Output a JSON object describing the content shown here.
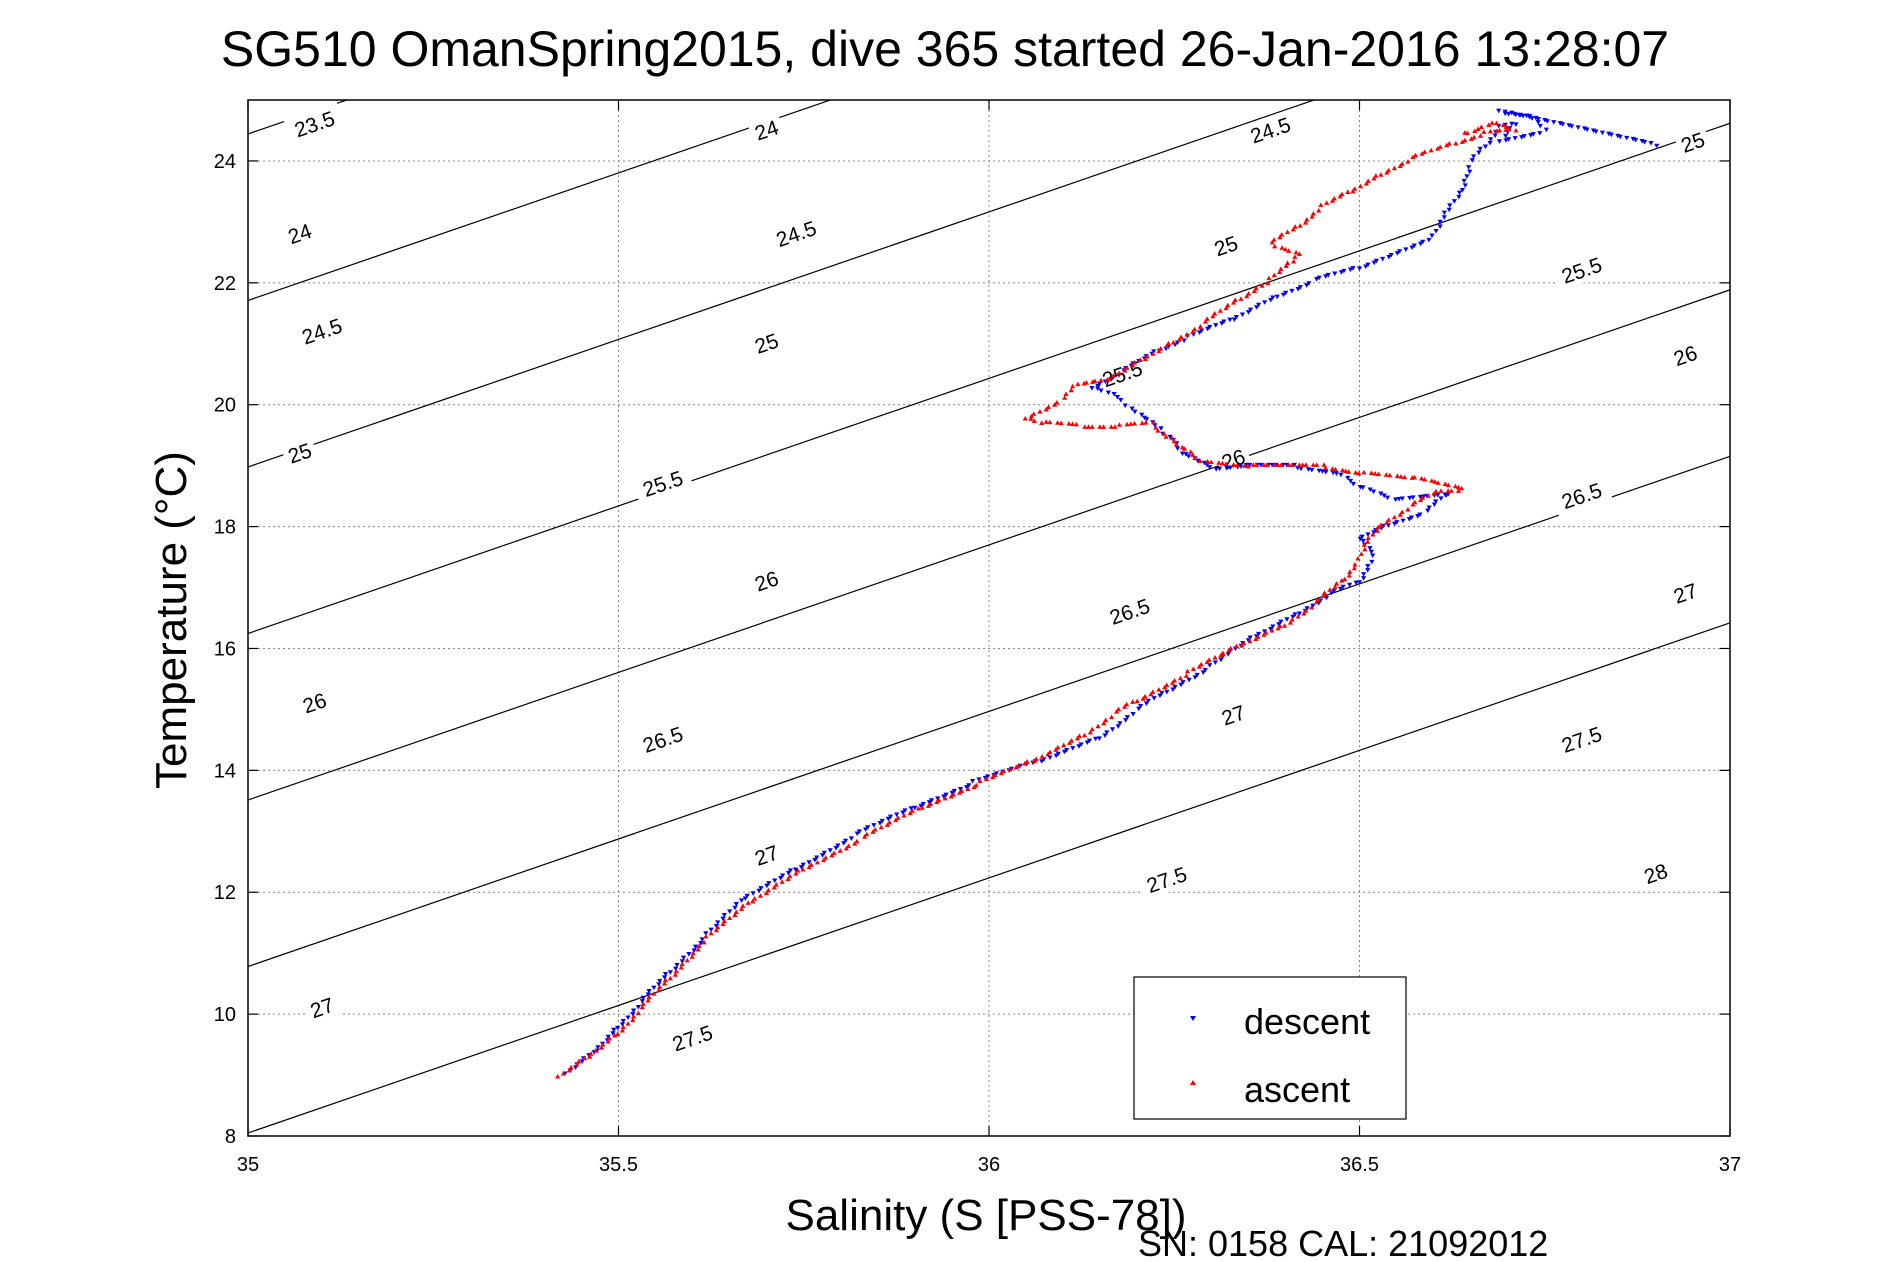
{
  "footer": "SN: 0158  CAL: 21092012",
  "chart_data": {
    "type": "scatter",
    "title": "SG510 OmanSpring2015, dive 365 started 26-Jan-2016 13:28:07",
    "xlabel": "Salinity (S [PSS-78])",
    "ylabel": "Temperature (°C)",
    "xlim": [
      35,
      37
    ],
    "ylim": [
      8,
      25
    ],
    "xticks": [
      "35",
      "35.5",
      "36",
      "36.5",
      "37"
    ],
    "yticks": [
      "8",
      "10",
      "12",
      "14",
      "16",
      "18",
      "20",
      "22",
      "24"
    ],
    "grid": true,
    "legend_position": "bottom-right",
    "legend": [
      "descent",
      "ascent"
    ],
    "colors": {
      "descent": "#0000ff",
      "ascent": "#ff0000",
      "contour": "#000000",
      "grid": "#888888"
    },
    "contours": {
      "levels": [
        23.5,
        24,
        24.5,
        25,
        25.5,
        26,
        26.5,
        27,
        27.5,
        28
      ],
      "labels": [
        {
          "text": "23.5",
          "s": 35.09,
          "t": 24.6
        },
        {
          "text": "24",
          "s": 35.7,
          "t": 24.5
        },
        {
          "text": "24.5",
          "s": 36.38,
          "t": 24.5
        },
        {
          "text": "25",
          "s": 36.95,
          "t": 24.3
        },
        {
          "text": "24",
          "s": 35.07,
          "t": 22.8
        },
        {
          "text": "24.5",
          "s": 35.74,
          "t": 22.8
        },
        {
          "text": "25",
          "s": 36.32,
          "t": 22.6
        },
        {
          "text": "25.5",
          "s": 36.8,
          "t": 22.2
        },
        {
          "text": "24.5",
          "s": 35.1,
          "t": 21.2
        },
        {
          "text": "25",
          "s": 35.7,
          "t": 21.0
        },
        {
          "text": "25.5",
          "s": 36.18,
          "t": 20.5
        },
        {
          "text": "26",
          "s": 36.94,
          "t": 20.8
        },
        {
          "text": "25",
          "s": 35.07,
          "t": 19.2
        },
        {
          "text": "25.5",
          "s": 35.56,
          "t": 18.7
        },
        {
          "text": "26",
          "s": 36.33,
          "t": 19.1
        },
        {
          "text": "26.5",
          "s": 36.8,
          "t": 18.5
        },
        {
          "text": "26",
          "s": 35.7,
          "t": 17.1
        },
        {
          "text": "26.5",
          "s": 36.19,
          "t": 16.6
        },
        {
          "text": "27",
          "s": 36.94,
          "t": 16.9
        },
        {
          "text": "26",
          "s": 35.09,
          "t": 15.1
        },
        {
          "text": "26.5",
          "s": 35.56,
          "t": 14.5
        },
        {
          "text": "27",
          "s": 36.33,
          "t": 14.9
        },
        {
          "text": "27.5",
          "s": 36.8,
          "t": 14.5
        },
        {
          "text": "27",
          "s": 35.7,
          "t": 12.6
        },
        {
          "text": "27.5",
          "s": 36.24,
          "t": 12.2
        },
        {
          "text": "28",
          "s": 36.9,
          "t": 12.3
        },
        {
          "text": "27",
          "s": 35.1,
          "t": 10.1
        },
        {
          "text": "27.5",
          "s": 35.6,
          "t": 9.6
        }
      ]
    },
    "series": [
      {
        "name": "descent",
        "marker": "triangle-down",
        "points": [
          [
            35.43,
            9.0
          ],
          [
            35.47,
            9.4
          ],
          [
            35.5,
            9.8
          ],
          [
            35.53,
            10.2
          ],
          [
            35.57,
            10.7
          ],
          [
            35.62,
            11.3
          ],
          [
            35.67,
            11.9
          ],
          [
            35.74,
            12.4
          ],
          [
            35.82,
            12.95
          ],
          [
            35.9,
            13.4
          ],
          [
            35.98,
            13.8
          ],
          [
            36.07,
            14.15
          ],
          [
            36.15,
            14.55
          ],
          [
            36.2,
            15.0
          ],
          [
            36.24,
            15.3
          ],
          [
            36.3,
            15.7
          ],
          [
            36.36,
            16.2
          ],
          [
            36.42,
            16.6
          ],
          [
            36.46,
            16.9
          ],
          [
            36.5,
            17.1
          ],
          [
            36.52,
            17.5
          ],
          [
            36.5,
            17.8
          ],
          [
            36.54,
            18.05
          ],
          [
            36.59,
            18.25
          ],
          [
            36.62,
            18.55
          ],
          [
            36.54,
            18.45
          ],
          [
            36.5,
            18.65
          ],
          [
            36.47,
            18.9
          ],
          [
            36.41,
            19.0
          ],
          [
            36.34,
            19.0
          ],
          [
            36.3,
            18.95
          ],
          [
            36.26,
            19.2
          ],
          [
            36.25,
            19.45
          ],
          [
            36.23,
            19.6
          ],
          [
            36.21,
            19.8
          ],
          [
            36.18,
            20.05
          ],
          [
            36.16,
            20.2
          ],
          [
            36.14,
            20.3
          ],
          [
            36.18,
            20.55
          ],
          [
            36.23,
            20.9
          ],
          [
            36.27,
            21.1
          ],
          [
            36.33,
            21.4
          ],
          [
            36.39,
            21.8
          ],
          [
            36.44,
            22.05
          ],
          [
            36.5,
            22.25
          ],
          [
            36.6,
            22.75
          ],
          [
            36.62,
            23.2
          ],
          [
            36.64,
            23.55
          ],
          [
            36.65,
            24.0
          ],
          [
            36.67,
            24.25
          ],
          [
            36.69,
            24.55
          ],
          [
            36.71,
            24.6
          ],
          [
            36.69,
            24.35
          ],
          [
            36.75,
            24.5
          ],
          [
            36.73,
            24.75
          ],
          [
            36.69,
            24.8
          ],
          [
            36.9,
            24.25
          ]
        ]
      },
      {
        "name": "ascent",
        "marker": "triangle-up",
        "points": [
          [
            35.42,
            8.95
          ],
          [
            35.46,
            9.3
          ],
          [
            35.5,
            9.7
          ],
          [
            35.53,
            10.1
          ],
          [
            35.57,
            10.6
          ],
          [
            35.62,
            11.25
          ],
          [
            35.68,
            11.85
          ],
          [
            35.75,
            12.4
          ],
          [
            35.83,
            12.9
          ],
          [
            35.91,
            13.4
          ],
          [
            35.99,
            13.8
          ],
          [
            36.06,
            14.15
          ],
          [
            36.13,
            14.6
          ],
          [
            36.17,
            14.95
          ],
          [
            36.2,
            15.15
          ],
          [
            36.27,
            15.6
          ],
          [
            36.34,
            16.05
          ],
          [
            36.4,
            16.4
          ],
          [
            36.44,
            16.75
          ],
          [
            36.48,
            17.15
          ],
          [
            36.5,
            17.45
          ],
          [
            36.51,
            17.75
          ],
          [
            36.53,
            18.05
          ],
          [
            36.57,
            18.35
          ],
          [
            36.61,
            18.6
          ],
          [
            36.64,
            18.6
          ],
          [
            36.57,
            18.8
          ],
          [
            36.5,
            18.9
          ],
          [
            36.45,
            19.0
          ],
          [
            36.35,
            19.0
          ],
          [
            36.28,
            19.1
          ],
          [
            36.26,
            19.3
          ],
          [
            36.24,
            19.5
          ],
          [
            36.22,
            19.7
          ],
          [
            36.17,
            19.65
          ],
          [
            36.12,
            19.65
          ],
          [
            36.07,
            19.7
          ],
          [
            36.05,
            19.8
          ],
          [
            36.1,
            20.1
          ],
          [
            36.12,
            20.35
          ],
          [
            36.17,
            20.45
          ],
          [
            36.21,
            20.75
          ],
          [
            36.25,
            21.05
          ],
          [
            36.29,
            21.35
          ],
          [
            36.34,
            21.75
          ],
          [
            36.38,
            22.05
          ],
          [
            36.41,
            22.35
          ],
          [
            36.42,
            22.5
          ],
          [
            36.38,
            22.65
          ],
          [
            36.42,
            22.95
          ],
          [
            36.45,
            23.25
          ],
          [
            36.49,
            23.5
          ],
          [
            36.53,
            23.8
          ],
          [
            36.57,
            24.05
          ],
          [
            36.63,
            24.3
          ],
          [
            36.67,
            24.45
          ],
          [
            36.71,
            24.5
          ],
          [
            36.68,
            24.65
          ],
          [
            36.64,
            24.45
          ]
        ]
      }
    ]
  }
}
